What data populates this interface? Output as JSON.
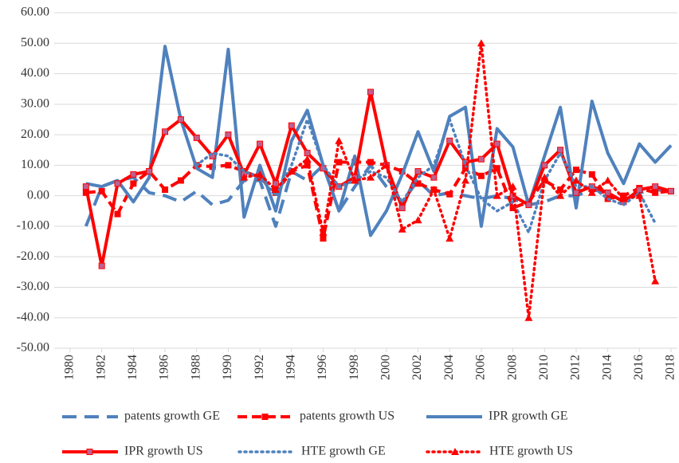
{
  "chart_data": {
    "type": "line",
    "x": [
      1981,
      1982,
      1983,
      1984,
      1985,
      1986,
      1987,
      1988,
      1989,
      1990,
      1991,
      1992,
      1993,
      1994,
      1995,
      1996,
      1997,
      1998,
      1999,
      2000,
      2001,
      2002,
      2003,
      2004,
      2005,
      2006,
      2007,
      2008,
      2009,
      2010,
      2011,
      2012,
      2013,
      2014,
      2015,
      2016,
      2017,
      2018
    ],
    "xlim": [
      1980,
      2018
    ],
    "xticks": [
      1980,
      1982,
      1984,
      1986,
      1988,
      1990,
      1992,
      1994,
      1996,
      1998,
      2000,
      2002,
      2004,
      2006,
      2008,
      2010,
      2012,
      2014,
      2016,
      2018
    ],
    "ylim": [
      -50,
      60
    ],
    "yticks": [
      {
        "value": -50,
        "label": "-50.00"
      },
      {
        "value": -40,
        "label": "-40.00"
      },
      {
        "value": -30,
        "label": "-30.00"
      },
      {
        "value": -20,
        "label": "-20.00"
      },
      {
        "value": -10,
        "label": "-10.00"
      },
      {
        "value": 0,
        "label": "0.00"
      },
      {
        "value": 10,
        "label": "10.00"
      },
      {
        "value": 20,
        "label": "20.00"
      },
      {
        "value": 30,
        "label": "30.00"
      },
      {
        "value": 40,
        "label": "40.00"
      },
      {
        "value": 50,
        "label": "50.00"
      },
      {
        "value": 60,
        "label": "60.00"
      }
    ],
    "grid": true,
    "legend": "bottom",
    "series": [
      {
        "name": "patents growth GE",
        "color": "#4f81bd",
        "dash": "long-dash",
        "values": [
          -10,
          3,
          5,
          6,
          1,
          0,
          -2,
          1.5,
          -3,
          -1.5,
          5,
          5,
          -10,
          8,
          5,
          10,
          -5,
          3,
          10,
          3,
          -2,
          5,
          0,
          1,
          0,
          -1,
          0,
          -1,
          -3,
          -2,
          0,
          0,
          2,
          1,
          -2,
          1,
          2,
          1.5
        ]
      },
      {
        "name": "patents growth US",
        "color": "#ff0000",
        "dash": "dash",
        "marker": "square",
        "values": [
          1,
          1.5,
          -6,
          4,
          8,
          2,
          5,
          10,
          9.5,
          10,
          8,
          6,
          1,
          8,
          10,
          -14,
          11,
          11,
          11,
          10,
          8,
          4,
          2,
          0.5,
          9,
          6.5,
          9,
          -4,
          -2,
          5,
          2,
          8.5,
          7,
          -1,
          0,
          2.5,
          1,
          1.5
        ]
      },
      {
        "name": "IPR growth GE",
        "color": "#4f81bd",
        "dash": "solid",
        "values": [
          4,
          3,
          5,
          -2,
          6,
          49,
          25,
          9,
          6,
          48,
          -7,
          10,
          -5,
          18,
          28,
          10,
          -5,
          13,
          -13,
          -5,
          7,
          21,
          8,
          26,
          29,
          -10,
          22,
          16,
          -3,
          13,
          29,
          -4,
          31,
          14,
          4,
          17,
          11,
          16.5
        ]
      },
      {
        "name": "IPR growth US",
        "color": "#ff0000",
        "dash": "solid",
        "marker": "square",
        "values": [
          3,
          -23,
          4,
          7,
          8,
          21,
          25,
          19,
          13,
          20,
          7,
          17,
          4,
          23,
          14,
          9,
          3,
          6,
          34,
          10,
          -4,
          8,
          6,
          18,
          11,
          12,
          17,
          0,
          -3,
          10,
          15,
          1,
          3,
          1,
          -2,
          2,
          3,
          1.5
        ]
      },
      {
        "name": "HTE growth GE",
        "color": "#4f81bd",
        "dash": "dot",
        "values": [
          null,
          null,
          null,
          null,
          null,
          null,
          null,
          10,
          14,
          13,
          8,
          6,
          0,
          10,
          25,
          10,
          3,
          5,
          8,
          6,
          -2,
          6,
          10,
          25,
          10,
          -1,
          -5,
          -2,
          -12,
          5,
          14,
          3,
          3,
          -1,
          -3,
          1,
          -9,
          null
        ]
      },
      {
        "name": "HTE growth US",
        "color": "#ff0000",
        "dash": "dot",
        "marker": "triangle",
        "values": [
          null,
          null,
          null,
          null,
          null,
          null,
          null,
          null,
          null,
          null,
          6,
          7,
          2,
          8,
          12,
          -12,
          18,
          5,
          6,
          10,
          -11,
          -8,
          2,
          -14,
          5,
          50,
          0,
          3,
          -40,
          6,
          0,
          5,
          1,
          5,
          -1,
          0,
          -28,
          null
        ]
      }
    ]
  }
}
